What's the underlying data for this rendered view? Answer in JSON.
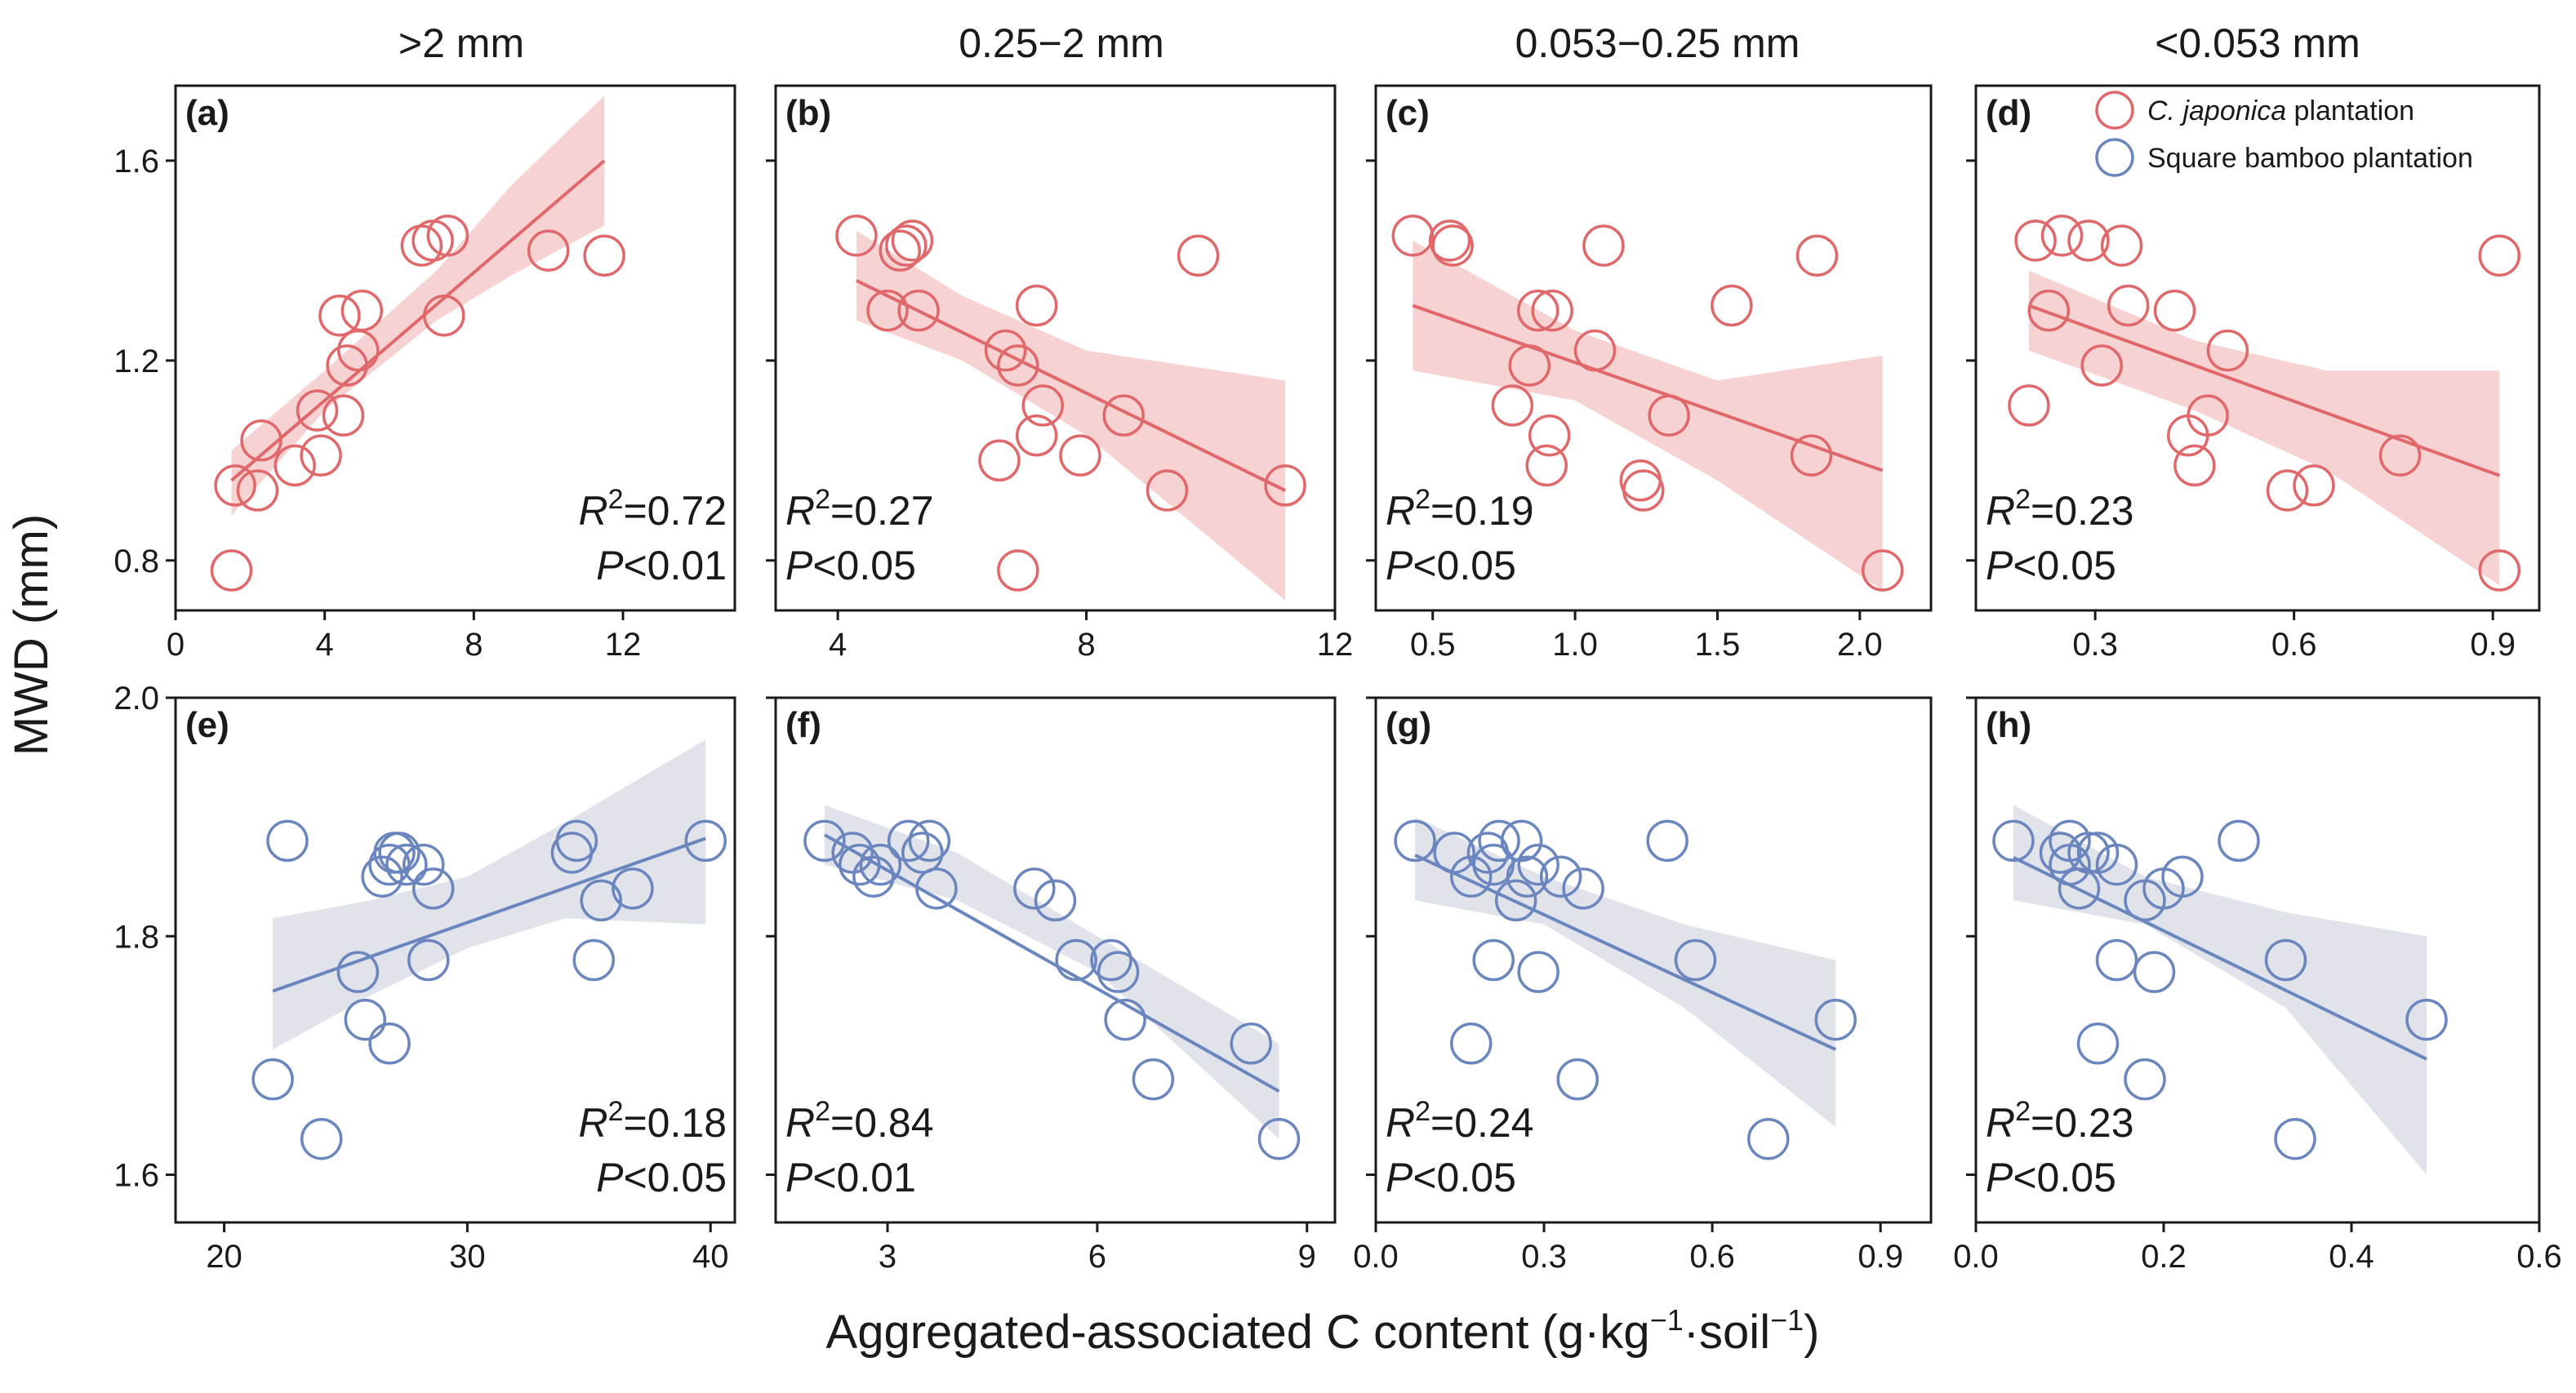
{
  "figure": {
    "column_titles": [
      ">2 mm",
      "0.25−2 mm",
      "0.053−0.25 mm",
      "<0.053 mm"
    ],
    "ylabel": "MWD (mm)",
    "xlabel_main": "Aggregated-associated C content (g·kg",
    "xlabel_sup1": "−1",
    "xlabel_mid": "·soil",
    "xlabel_sup2": "−1",
    "xlabel_end": ")",
    "legend": [
      {
        "italic": "C. japonica",
        "rest": " plantation",
        "color": "#e0686a"
      },
      {
        "italic": "",
        "rest": "Square bamboo plantation",
        "color": "#6b86bf"
      }
    ],
    "colors": {
      "red": "#e0686a",
      "red_band": "#f6cacb",
      "blue": "#6b86bf",
      "blue_band": "#dcdee6"
    }
  },
  "chart_data": [
    {
      "type": "scatter",
      "panel": "(a)",
      "series": "C. japonica plantation",
      "color": "red",
      "r2": "0.72",
      "p": "<0.01",
      "stat_pos": "bottom-right",
      "xlim": [
        0,
        15
      ],
      "xticks": [
        0,
        4,
        8,
        12
      ],
      "xtick_labels": [
        "0",
        "4",
        "8",
        "12"
      ],
      "ylim": [
        0.7,
        1.75
      ],
      "yticks": [
        0.8,
        1.2,
        1.6
      ],
      "ytick_labels": [
        "0.8",
        "1.2",
        "1.6"
      ],
      "points": [
        [
          1.5,
          0.78
        ],
        [
          1.6,
          0.95
        ],
        [
          2.2,
          0.94
        ],
        [
          2.3,
          1.04
        ],
        [
          3.2,
          0.99
        ],
        [
          3.9,
          1.01
        ],
        [
          3.8,
          1.1
        ],
        [
          4.5,
          1.09
        ],
        [
          4.6,
          1.19
        ],
        [
          4.9,
          1.22
        ],
        [
          4.4,
          1.29
        ],
        [
          5.0,
          1.3
        ],
        [
          6.6,
          1.43
        ],
        [
          6.9,
          1.44
        ],
        [
          7.3,
          1.45
        ],
        [
          7.2,
          1.29
        ],
        [
          10.0,
          1.42
        ],
        [
          11.5,
          1.41
        ]
      ],
      "fit": [
        [
          1.5,
          0.96
        ],
        [
          11.5,
          1.6
        ]
      ],
      "band": [
        [
          1.5,
          0.89,
          1.02
        ],
        [
          4,
          1.1,
          1.18
        ],
        [
          7,
          1.28,
          1.38
        ],
        [
          9,
          1.37,
          1.55
        ],
        [
          11.5,
          1.47,
          1.73
        ]
      ]
    },
    {
      "type": "scatter",
      "panel": "(b)",
      "series": "C. japonica plantation",
      "color": "red",
      "r2": "0.27",
      "p": "<0.05",
      "stat_pos": "bottom-left",
      "xlim": [
        3,
        12
      ],
      "xticks": [
        4,
        8,
        12
      ],
      "xtick_labels": [
        "4",
        "8",
        "12"
      ],
      "ylim": [
        0.7,
        1.75
      ],
      "yticks": [
        0.8,
        1.2,
        1.6
      ],
      "ytick_labels": [
        "",
        "",
        ""
      ],
      "points": [
        [
          4.3,
          1.45
        ],
        [
          5.0,
          1.42
        ],
        [
          5.1,
          1.43
        ],
        [
          5.2,
          1.44
        ],
        [
          4.8,
          1.3
        ],
        [
          5.3,
          1.3
        ],
        [
          7.2,
          1.31
        ],
        [
          6.7,
          1.22
        ],
        [
          6.9,
          1.19
        ],
        [
          7.3,
          1.11
        ],
        [
          7.2,
          1.05
        ],
        [
          8.6,
          1.09
        ],
        [
          7.9,
          1.01
        ],
        [
          6.6,
          1.0
        ],
        [
          9.3,
          0.94
        ],
        [
          11.2,
          0.95
        ],
        [
          9.8,
          1.41
        ],
        [
          6.9,
          0.78
        ]
      ],
      "fit": [
        [
          4.3,
          1.36
        ],
        [
          11.2,
          0.94
        ]
      ],
      "band": [
        [
          4.3,
          1.28,
          1.46
        ],
        [
          6,
          1.2,
          1.33
        ],
        [
          8,
          1.05,
          1.22
        ],
        [
          11.2,
          0.72,
          1.16
        ]
      ]
    },
    {
      "type": "scatter",
      "panel": "(c)",
      "series": "C. japonica plantation",
      "color": "red",
      "r2": "0.19",
      "p": "<0.05",
      "stat_pos": "bottom-left",
      "xlim": [
        0.3,
        2.25
      ],
      "xticks": [
        0.5,
        1.0,
        1.5,
        2.0
      ],
      "xtick_labels": [
        "0.5",
        "1.0",
        "1.5",
        "2.0"
      ],
      "ylim": [
        0.7,
        1.75
      ],
      "yticks": [
        0.8,
        1.2,
        1.6
      ],
      "ytick_labels": [
        "",
        "",
        ""
      ],
      "points": [
        [
          0.43,
          1.45
        ],
        [
          0.56,
          1.44
        ],
        [
          0.57,
          1.43
        ],
        [
          1.1,
          1.43
        ],
        [
          1.85,
          1.41
        ],
        [
          0.87,
          1.3
        ],
        [
          0.92,
          1.3
        ],
        [
          1.55,
          1.31
        ],
        [
          1.07,
          1.22
        ],
        [
          0.84,
          1.19
        ],
        [
          0.78,
          1.11
        ],
        [
          0.91,
          1.05
        ],
        [
          1.33,
          1.09
        ],
        [
          0.9,
          0.99
        ],
        [
          1.23,
          0.96
        ],
        [
          1.24,
          0.94
        ],
        [
          1.83,
          1.01
        ],
        [
          2.08,
          0.78
        ]
      ],
      "fit": [
        [
          0.43,
          1.31
        ],
        [
          2.08,
          0.98
        ]
      ],
      "band": [
        [
          0.43,
          1.18,
          1.44
        ],
        [
          1.0,
          1.12,
          1.26
        ],
        [
          1.5,
          0.96,
          1.16
        ],
        [
          2.08,
          0.74,
          1.21
        ]
      ]
    },
    {
      "type": "scatter",
      "panel": "(d)",
      "series": "C. japonica plantation",
      "color": "red",
      "r2": "0.23",
      "p": "<0.05",
      "stat_pos": "bottom-left",
      "legend": true,
      "xlim": [
        0.12,
        0.97
      ],
      "xticks": [
        0.3,
        0.6,
        0.9
      ],
      "xtick_labels": [
        "0.3",
        "0.6",
        "0.9"
      ],
      "ylim": [
        0.7,
        1.75
      ],
      "yticks": [
        0.8,
        1.2,
        1.6
      ],
      "ytick_labels": [
        "",
        "",
        ""
      ],
      "points": [
        [
          0.21,
          1.44
        ],
        [
          0.25,
          1.45
        ],
        [
          0.29,
          1.44
        ],
        [
          0.34,
          1.43
        ],
        [
          0.23,
          1.3
        ],
        [
          0.35,
          1.31
        ],
        [
          0.42,
          1.3
        ],
        [
          0.31,
          1.19
        ],
        [
          0.5,
          1.22
        ],
        [
          0.2,
          1.11
        ],
        [
          0.47,
          1.09
        ],
        [
          0.44,
          1.05
        ],
        [
          0.45,
          0.99
        ],
        [
          0.59,
          0.94
        ],
        [
          0.63,
          0.95
        ],
        [
          0.76,
          1.01
        ],
        [
          0.91,
          1.41
        ],
        [
          0.91,
          0.78
        ]
      ],
      "fit": [
        [
          0.2,
          1.31
        ],
        [
          0.91,
          0.97
        ]
      ],
      "band": [
        [
          0.2,
          1.22,
          1.38
        ],
        [
          0.45,
          1.1,
          1.24
        ],
        [
          0.65,
          0.98,
          1.18
        ],
        [
          0.91,
          0.75,
          1.18
        ]
      ]
    },
    {
      "type": "scatter",
      "panel": "(e)",
      "series": "Square bamboo plantation",
      "color": "blue",
      "r2": "0.18",
      "p": "<0.05",
      "stat_pos": "bottom-right",
      "xlim": [
        18,
        41
      ],
      "xticks": [
        20,
        30,
        40
      ],
      "xtick_labels": [
        "20",
        "30",
        "40"
      ],
      "ylim": [
        1.56,
        2.0
      ],
      "yticks": [
        1.6,
        1.8,
        2.0
      ],
      "ytick_labels": [
        "1.6",
        "1.8",
        "2.0"
      ],
      "points": [
        [
          22.6,
          1.88
        ],
        [
          22.0,
          1.68
        ],
        [
          24.0,
          1.63
        ],
        [
          25.5,
          1.77
        ],
        [
          25.8,
          1.73
        ],
        [
          26.5,
          1.85
        ],
        [
          26.8,
          1.86
        ],
        [
          27.0,
          1.87
        ],
        [
          27.2,
          1.87
        ],
        [
          27.5,
          1.86
        ],
        [
          28.2,
          1.86
        ],
        [
          28.6,
          1.84
        ],
        [
          28.4,
          1.78
        ],
        [
          26.8,
          1.71
        ],
        [
          34.5,
          1.88
        ],
        [
          34.3,
          1.87
        ],
        [
          35.5,
          1.83
        ],
        [
          35.2,
          1.78
        ],
        [
          36.8,
          1.84
        ],
        [
          39.8,
          1.88
        ]
      ],
      "fit": [
        [
          22,
          1.754
        ],
        [
          39.8,
          1.882
        ]
      ],
      "band": [
        [
          22,
          1.705,
          1.815
        ],
        [
          26,
          1.75,
          1.83
        ],
        [
          30,
          1.79,
          1.85
        ],
        [
          34,
          1.815,
          1.895
        ],
        [
          39.8,
          1.81,
          1.965
        ]
      ]
    },
    {
      "type": "scatter",
      "panel": "(f)",
      "series": "Square bamboo plantation",
      "color": "blue",
      "r2": "0.84",
      "p": "<0.01",
      "stat_pos": "bottom-left",
      "xlim": [
        1.4,
        9.4
      ],
      "xticks": [
        3,
        6,
        9
      ],
      "xtick_labels": [
        "3",
        "6",
        "9"
      ],
      "ylim": [
        1.56,
        2.0
      ],
      "yticks": [
        1.6,
        1.8,
        2.0
      ],
      "ytick_labels": [
        "",
        "",
        ""
      ],
      "points": [
        [
          2.1,
          1.88
        ],
        [
          2.5,
          1.87
        ],
        [
          2.6,
          1.86
        ],
        [
          2.8,
          1.85
        ],
        [
          2.9,
          1.86
        ],
        [
          3.3,
          1.88
        ],
        [
          3.5,
          1.87
        ],
        [
          3.6,
          1.88
        ],
        [
          3.7,
          1.84
        ],
        [
          5.1,
          1.84
        ],
        [
          5.4,
          1.83
        ],
        [
          5.7,
          1.78
        ],
        [
          6.2,
          1.78
        ],
        [
          6.3,
          1.77
        ],
        [
          6.4,
          1.73
        ],
        [
          6.8,
          1.68
        ],
        [
          8.2,
          1.71
        ],
        [
          8.6,
          1.63
        ]
      ],
      "fit": [
        [
          2.1,
          1.885
        ],
        [
          8.6,
          1.67
        ]
      ],
      "band": [
        [
          2.1,
          1.86,
          1.91
        ],
        [
          4,
          1.83,
          1.87
        ],
        [
          6,
          1.77,
          1.8
        ],
        [
          8.6,
          1.63,
          1.71
        ]
      ]
    },
    {
      "type": "scatter",
      "panel": "(g)",
      "series": "Square bamboo plantation",
      "color": "blue",
      "r2": "0.24",
      "p": "<0.05",
      "stat_pos": "bottom-left",
      "xlim": [
        0.0,
        0.99
      ],
      "xticks": [
        0.0,
        0.3,
        0.6,
        0.9
      ],
      "xtick_labels": [
        "0.0",
        "0.3",
        "0.6",
        "0.9"
      ],
      "ylim": [
        1.56,
        2.0
      ],
      "yticks": [
        1.6,
        1.8,
        2.0
      ],
      "ytick_labels": [
        "",
        "",
        ""
      ],
      "points": [
        [
          0.07,
          1.88
        ],
        [
          0.14,
          1.87
        ],
        [
          0.17,
          1.85
        ],
        [
          0.2,
          1.87
        ],
        [
          0.21,
          1.86
        ],
        [
          0.22,
          1.88
        ],
        [
          0.26,
          1.88
        ],
        [
          0.27,
          1.85
        ],
        [
          0.29,
          1.86
        ],
        [
          0.33,
          1.85
        ],
        [
          0.37,
          1.84
        ],
        [
          0.25,
          1.83
        ],
        [
          0.21,
          1.78
        ],
        [
          0.29,
          1.77
        ],
        [
          0.17,
          1.71
        ],
        [
          0.36,
          1.68
        ],
        [
          0.52,
          1.88
        ],
        [
          0.57,
          1.78
        ],
        [
          0.7,
          1.63
        ],
        [
          0.82,
          1.73
        ]
      ],
      "fit": [
        [
          0.07,
          1.868
        ],
        [
          0.82,
          1.705
        ]
      ],
      "band": [
        [
          0.07,
          1.83,
          1.9
        ],
        [
          0.3,
          1.81,
          1.85
        ],
        [
          0.55,
          1.74,
          1.81
        ],
        [
          0.82,
          1.64,
          1.78
        ]
      ]
    },
    {
      "type": "scatter",
      "panel": "(h)",
      "series": "Square bamboo plantation",
      "color": "blue",
      "r2": "0.23",
      "p": "<0.05",
      "stat_pos": "bottom-left",
      "xlim": [
        0.0,
        0.6
      ],
      "xticks": [
        0.0,
        0.2,
        0.4,
        0.6
      ],
      "xtick_labels": [
        "0.0",
        "0.2",
        "0.4",
        "0.6"
      ],
      "ylim": [
        1.56,
        2.0
      ],
      "yticks": [
        1.6,
        1.8,
        2.0
      ],
      "ytick_labels": [
        "",
        "",
        ""
      ],
      "points": [
        [
          0.04,
          1.88
        ],
        [
          0.09,
          1.87
        ],
        [
          0.1,
          1.86
        ],
        [
          0.1,
          1.88
        ],
        [
          0.12,
          1.87
        ],
        [
          0.13,
          1.87
        ],
        [
          0.15,
          1.86
        ],
        [
          0.2,
          1.84
        ],
        [
          0.22,
          1.85
        ],
        [
          0.11,
          1.84
        ],
        [
          0.18,
          1.83
        ],
        [
          0.15,
          1.78
        ],
        [
          0.19,
          1.77
        ],
        [
          0.13,
          1.71
        ],
        [
          0.18,
          1.68
        ],
        [
          0.28,
          1.88
        ],
        [
          0.33,
          1.78
        ],
        [
          0.34,
          1.63
        ],
        [
          0.48,
          1.73
        ]
      ],
      "fit": [
        [
          0.04,
          1.866
        ],
        [
          0.48,
          1.697
        ]
      ],
      "band": [
        [
          0.04,
          1.83,
          1.91
        ],
        [
          0.18,
          1.81,
          1.85
        ],
        [
          0.33,
          1.74,
          1.82
        ],
        [
          0.48,
          1.6,
          1.8
        ]
      ]
    }
  ]
}
